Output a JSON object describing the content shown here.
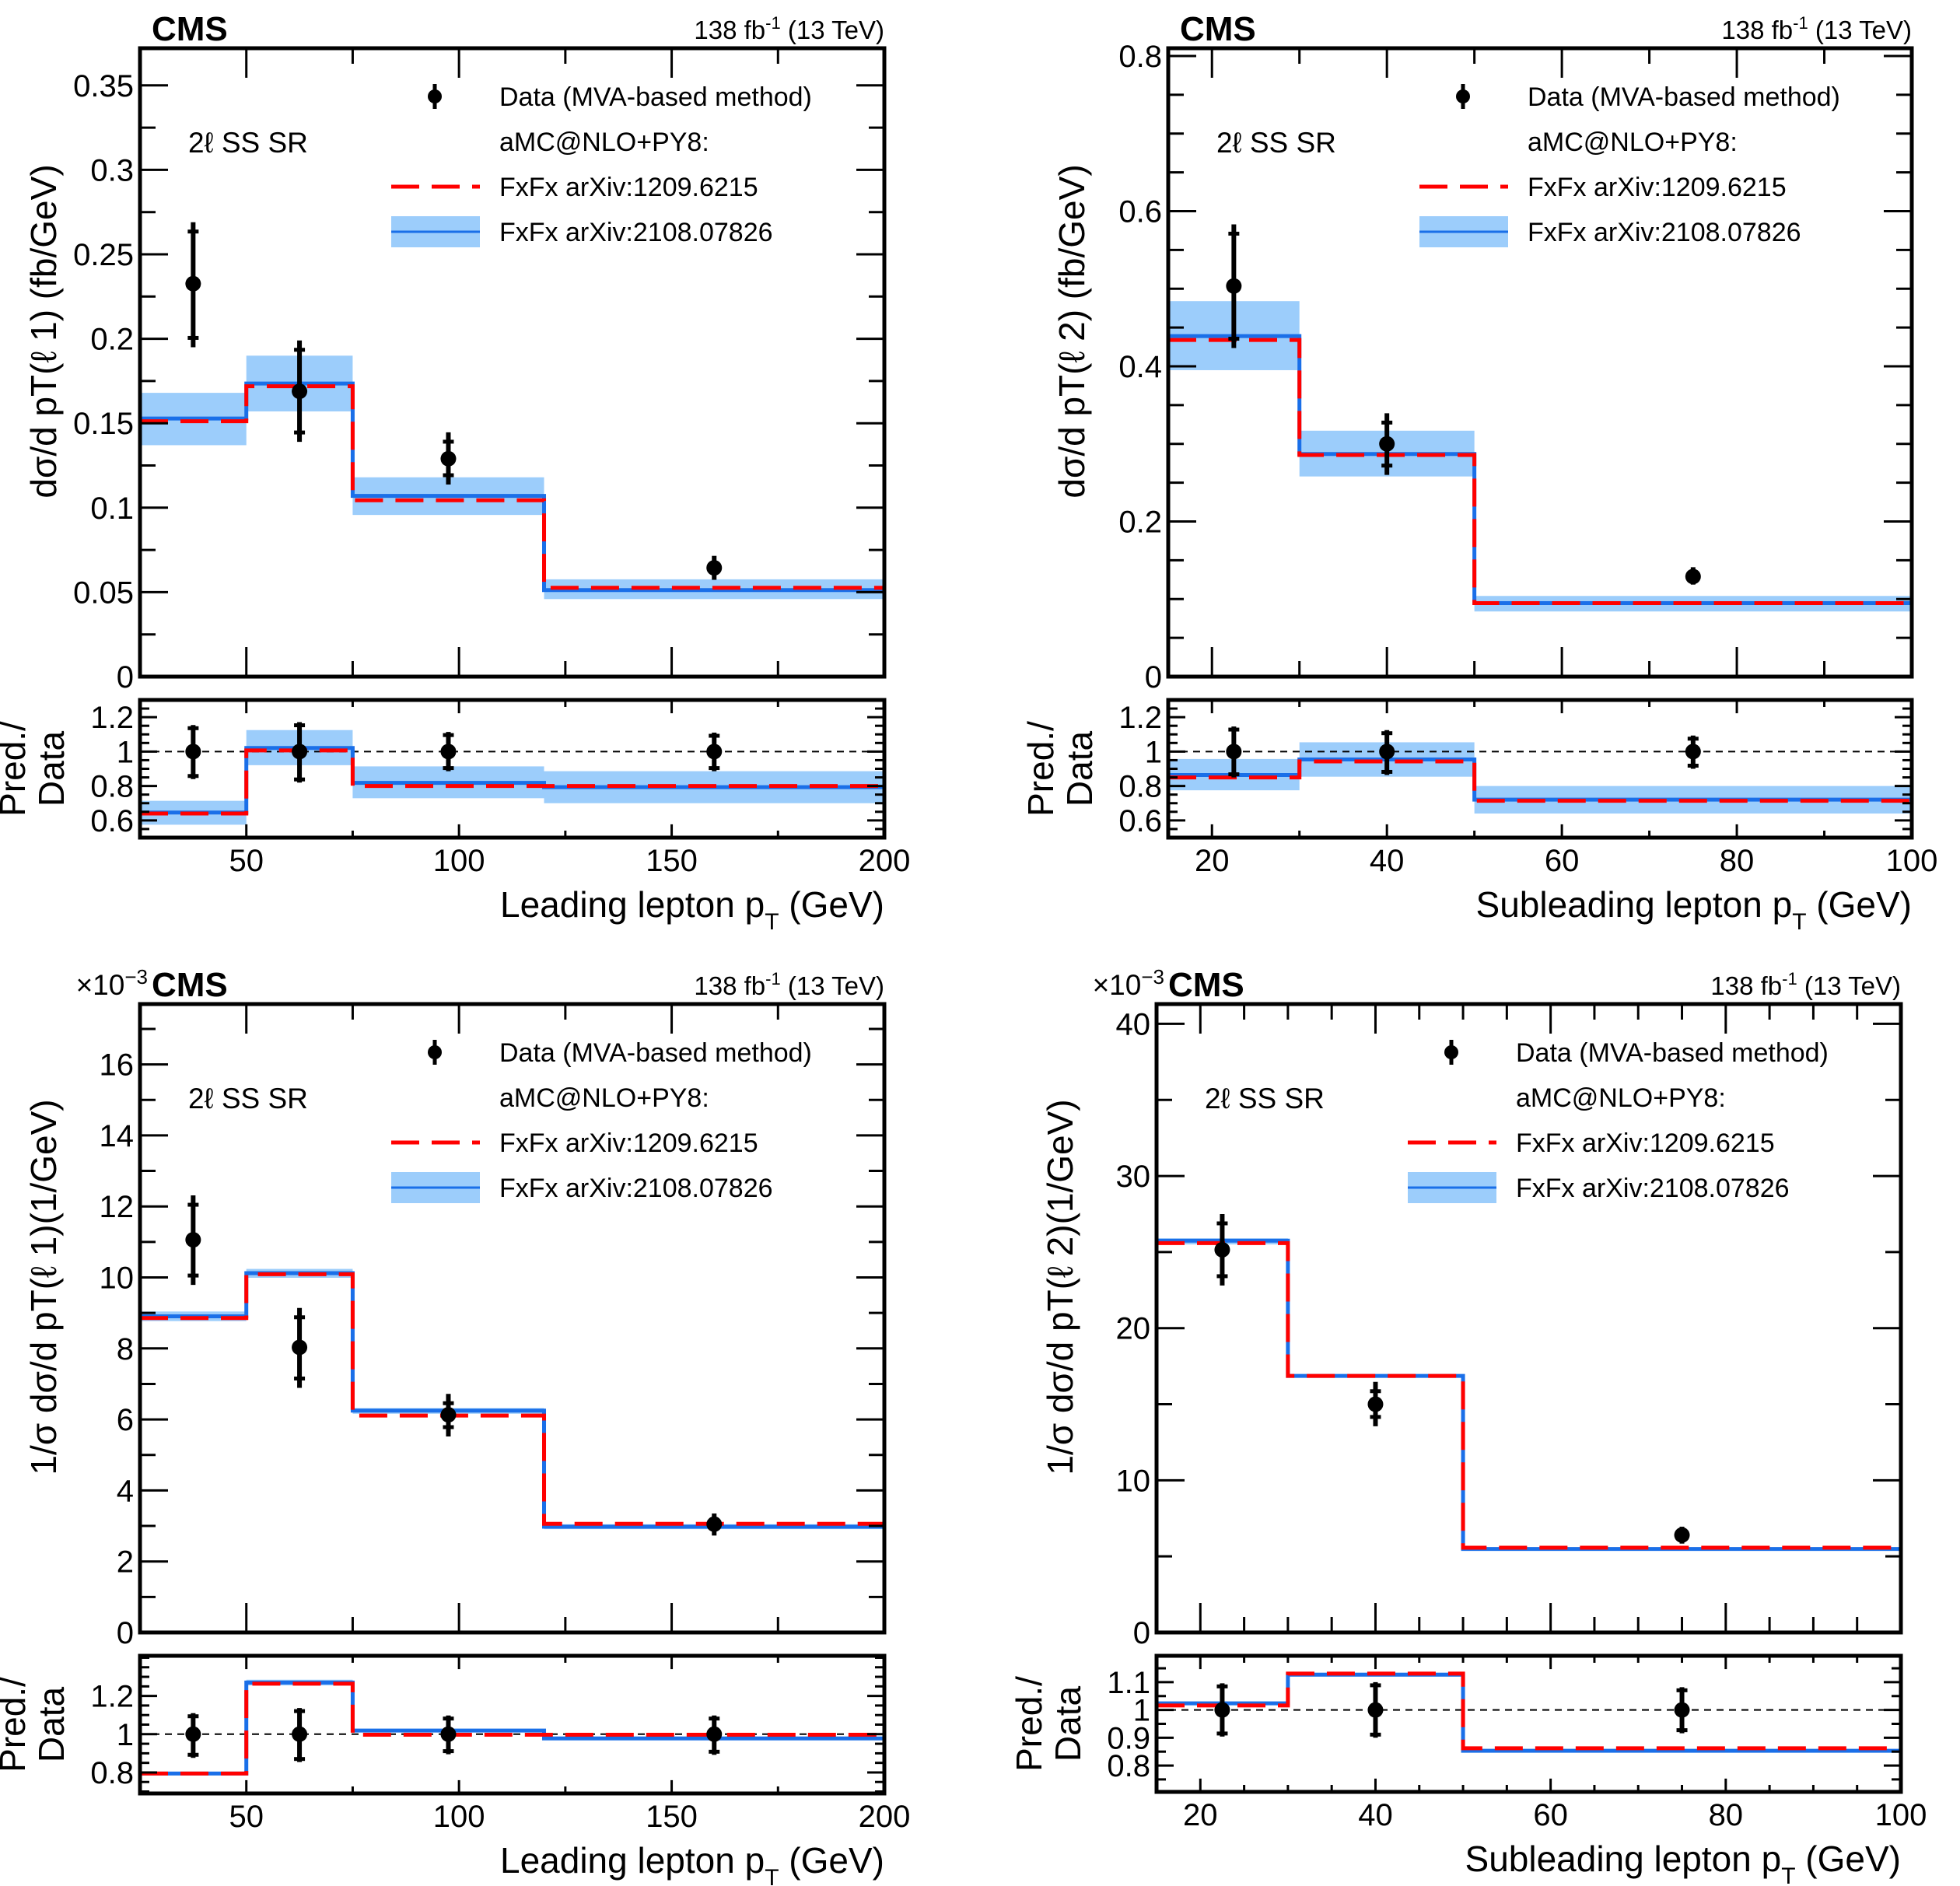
{
  "figure": {
    "colors": {
      "data": "#000000",
      "red_line": "#ff0000",
      "blue_line": "#1a6fe8",
      "blue_band": "#9ccdfb",
      "reference_line": "#000000"
    }
  },
  "chart_data": [
    {
      "id": "top-left",
      "type": "line",
      "title": "CMS",
      "lumi_text": "138 fb",
      "lumi_sup": "-1",
      "lumi_suffix": " (13 TeV)",
      "region_label": "2ℓ SS SR",
      "exponent_label": "",
      "ylabel": "dσ/d pT(ℓ 1)  (fb/GeV)",
      "ratio_ylabel_line1": "Pred./",
      "ratio_ylabel_line2": "Data",
      "xlabel": "Leading lepton p",
      "xlabel_sub": "T",
      "xlabel_suffix": " (GeV)",
      "xlim": [
        25,
        200
      ],
      "ylim": [
        0,
        0.372
      ],
      "ratio_ylim": [
        0.5,
        1.3
      ],
      "xticks": [
        50,
        100,
        150,
        200
      ],
      "xtick_labels": [
        "50",
        "100",
        "150",
        "200"
      ],
      "x_minor_step": 25,
      "yticks": [
        0,
        0.05,
        0.1,
        0.15,
        0.2,
        0.25,
        0.3,
        0.35
      ],
      "ytick_labels": [
        "0",
        "0.05",
        "0.1",
        "0.15",
        "0.2",
        "0.25",
        "0.3",
        "0.35"
      ],
      "y_minor_step": 0.025,
      "ratio_yticks": [
        0.6,
        0.8,
        1,
        1.2
      ],
      "ratio_ytick_labels": [
        "0.6",
        "0.8",
        "1",
        "1.2"
      ],
      "ratio_minor_step": 0.05,
      "bin_edges": [
        25,
        50,
        75,
        120,
        200
      ],
      "legend": [
        {
          "type": "data",
          "label": "Data (MVA-based method)"
        },
        {
          "type": "text",
          "label": "aMC@NLO+PY8:"
        },
        {
          "type": "red",
          "label": "FxFx arXiv:1209.6215"
        },
        {
          "type": "blue",
          "label": "FxFx arXiv:2108.07826"
        }
      ],
      "series": [
        {
          "name": "Data (MVA-based method)",
          "kind": "points",
          "x": [
            37.5,
            62.5,
            97.5,
            160
          ],
          "y": [
            0.2326,
            0.1689,
            0.129,
            0.0644
          ],
          "y_low": [
            0.195,
            0.139,
            0.1137,
            0.0573
          ],
          "y_high": [
            0.269,
            0.199,
            0.1446,
            0.0715
          ],
          "ratio_low": [
            0.84,
            0.82,
            0.886,
            0.886
          ],
          "ratio_high": [
            1.154,
            1.171,
            1.114,
            1.11
          ]
        },
        {
          "name": "FxFx arXiv:1209.6215",
          "kind": "red",
          "values": [
            0.1512,
            0.1719,
            0.1044,
            0.0526
          ],
          "ratio": [
            0.64,
            1.007,
            0.8,
            0.8
          ]
        },
        {
          "name": "FxFx arXiv:2108.07826",
          "kind": "blue",
          "values": [
            0.1528,
            0.1735,
            0.107,
            0.0512
          ],
          "band_low": [
            0.137,
            0.157,
            0.0957,
            0.0459
          ],
          "band_high": [
            0.168,
            0.19,
            0.118,
            0.0576
          ],
          "ratio": [
            0.646,
            1.021,
            0.818,
            0.793
          ],
          "ratio_band_low": [
            0.575,
            0.921,
            0.729,
            0.7
          ],
          "ratio_band_high": [
            0.714,
            1.125,
            0.914,
            0.886
          ]
        }
      ]
    },
    {
      "id": "top-right",
      "type": "line",
      "title": "CMS",
      "lumi_text": "138 fb",
      "lumi_sup": "-1",
      "lumi_suffix": " (13 TeV)",
      "region_label": "2ℓ SS SR",
      "exponent_label": "",
      "ylabel": "dσ/d pT(ℓ 2)  (fb/GeV)",
      "ratio_ylabel_line1": "Pred./",
      "ratio_ylabel_line2": "Data",
      "xlabel": "Subleading lepton p",
      "xlabel_sub": "T",
      "xlabel_suffix": " (GeV)",
      "xlim": [
        15,
        100
      ],
      "ylim": [
        0,
        0.81
      ],
      "ratio_ylim": [
        0.5,
        1.3
      ],
      "xticks": [
        20,
        40,
        60,
        80,
        100
      ],
      "xtick_labels": [
        "20",
        "40",
        "60",
        "80",
        "100"
      ],
      "x_minor_step": 10,
      "yticks": [
        0,
        0.2,
        0.4,
        0.6,
        0.8
      ],
      "ytick_labels": [
        "0",
        "0.2",
        "0.4",
        "0.6",
        "0.8"
      ],
      "y_minor_step": 0.05,
      "ratio_yticks": [
        0.6,
        0.8,
        1,
        1.2
      ],
      "ratio_ytick_labels": [
        "0.6",
        "0.8",
        "1",
        "1.2"
      ],
      "ratio_minor_step": 0.05,
      "bin_edges": [
        15,
        30,
        50,
        100
      ],
      "legend": [
        {
          "type": "data",
          "label": "Data (MVA-based method)"
        },
        {
          "type": "text",
          "label": "aMC@NLO+PY8:"
        },
        {
          "type": "red",
          "label": "FxFx arXiv:1209.6215"
        },
        {
          "type": "blue",
          "label": "FxFx arXiv:2108.07826"
        }
      ],
      "series": [
        {
          "name": "Data (MVA-based method)",
          "kind": "points",
          "x": [
            22.5,
            40,
            75
          ],
          "y": [
            0.5035,
            0.3,
            0.129
          ],
          "y_low": [
            0.4235,
            0.26,
            0.1186
          ],
          "y_high": [
            0.583,
            0.3395,
            0.141
          ],
          "ratio_low": [
            0.85,
            0.864,
            0.9
          ],
          "ratio_high": [
            1.146,
            1.125,
            1.093
          ]
        },
        {
          "name": "FxFx arXiv:1209.6215",
          "kind": "red",
          "values": [
            0.434,
            0.2857,
            0.0947
          ],
          "ratio": [
            0.85,
            0.943,
            0.714
          ]
        },
        {
          "name": "FxFx arXiv:2108.07826",
          "kind": "blue",
          "values": [
            0.439,
            0.287,
            0.0947
          ],
          "band_low": [
            0.395,
            0.258,
            0.084
          ],
          "band_high": [
            0.484,
            0.317,
            0.104
          ],
          "ratio": [
            0.864,
            0.954,
            0.721
          ],
          "ratio_band_low": [
            0.775,
            0.854,
            0.64
          ],
          "ratio_band_high": [
            0.957,
            1.054,
            0.8
          ]
        }
      ]
    },
    {
      "id": "bottom-left",
      "type": "line",
      "title": "CMS",
      "lumi_text": "138 fb",
      "lumi_sup": "-1",
      "lumi_suffix": " (13 TeV)",
      "region_label": "2ℓ SS SR",
      "exponent_label": "×10",
      "exponent_sup": "−3",
      "ylabel": "1/σ dσ/d pT(ℓ 1)(1/GeV)",
      "ratio_ylabel_line1": "Pred./",
      "ratio_ylabel_line2": "Data",
      "xlabel": "Leading lepton p",
      "xlabel_sub": "T",
      "xlabel_suffix": " (GeV)",
      "xlim": [
        25,
        200
      ],
      "ylim": [
        0,
        17.7
      ],
      "ratio_ylim": [
        0.69,
        1.41
      ],
      "xticks": [
        50,
        100,
        150,
        200
      ],
      "xtick_labels": [
        "50",
        "100",
        "150",
        "200"
      ],
      "x_minor_step": 25,
      "yticks": [
        0,
        2,
        4,
        6,
        8,
        10,
        12,
        14,
        16
      ],
      "ytick_labels": [
        "0",
        "2",
        "4",
        "6",
        "8",
        "10",
        "12",
        "14",
        "16"
      ],
      "y_minor_step": 1,
      "ratio_yticks": [
        0.8,
        1,
        1.2
      ],
      "ratio_ytick_labels": [
        "0.8",
        "1",
        "1.2"
      ],
      "ratio_minor_step": 0.05,
      "bin_edges": [
        25,
        50,
        75,
        120,
        200
      ],
      "legend": [
        {
          "type": "data",
          "label": "Data (MVA-based method)"
        },
        {
          "type": "text",
          "label": "aMC@NLO+PY8:"
        },
        {
          "type": "red",
          "label": "FxFx arXiv:1209.6215"
        },
        {
          "type": "blue",
          "label": "FxFx arXiv:2108.07826"
        }
      ],
      "series": [
        {
          "name": "Data (MVA-based method)",
          "kind": "points",
          "x": [
            37.5,
            62.5,
            97.5,
            160
          ],
          "y": [
            11.06,
            8.03,
            6.13,
            3.05
          ],
          "y_low": [
            9.79,
            6.89,
            5.52,
            2.73
          ],
          "y_high": [
            12.31,
            9.14,
            6.72,
            3.35
          ],
          "ratio_low": [
            0.876,
            0.854,
            0.895,
            0.892
          ],
          "ratio_high": [
            1.11,
            1.137,
            1.098,
            1.098
          ]
        },
        {
          "name": "FxFx arXiv:1209.6215",
          "kind": "red",
          "values": [
            8.855,
            10.09,
            6.11,
            3.06
          ],
          "ratio": [
            0.794,
            1.264,
            0.997,
            0.997
          ]
        },
        {
          "name": "FxFx arXiv:2108.07826",
          "kind": "blue",
          "values": [
            8.906,
            10.12,
            6.25,
            2.98
          ],
          "band_low": [
            8.77,
            9.99,
            6.16,
            2.91
          ],
          "band_high": [
            9.04,
            10.24,
            6.32,
            3.05
          ],
          "ratio": [
            0.794,
            1.27,
            1.019,
            0.978
          ],
          "ratio_band_low": [
            0.785,
            1.255,
            1.01,
            0.97
          ],
          "ratio_band_high": [
            0.803,
            1.285,
            1.028,
            0.986
          ]
        }
      ]
    },
    {
      "id": "bottom-right",
      "type": "line",
      "title": "CMS",
      "lumi_text": "138 fb",
      "lumi_sup": "-1",
      "lumi_suffix": " (13 TeV)",
      "region_label": "2ℓ SS SR",
      "exponent_label": "×10",
      "exponent_sup": "−3",
      "ylabel": "1/σ dσ/d pT(ℓ 2)(1/GeV)",
      "ratio_ylabel_line1": "Pred./",
      "ratio_ylabel_line2": "Data",
      "xlabel": "Subleading lepton p",
      "xlabel_sub": "T",
      "xlabel_suffix": " (GeV)",
      "xlim": [
        15,
        100
      ],
      "ylim": [
        0,
        41.3
      ],
      "ratio_ylim": [
        0.705,
        1.195
      ],
      "xticks": [
        20,
        40,
        60,
        80,
        100
      ],
      "xtick_labels": [
        "20",
        "40",
        "60",
        "80",
        "100"
      ],
      "x_minor_step": 5,
      "yticks": [
        0,
        10,
        20,
        30,
        40
      ],
      "ytick_labels": [
        "0",
        "10",
        "20",
        "30",
        "40"
      ],
      "y_minor_step": 5,
      "ratio_yticks": [
        0.8,
        0.9,
        1,
        1.1
      ],
      "ratio_ytick_labels": [
        "0.8",
        "0.9",
        "1",
        "1.1"
      ],
      "ratio_minor_step": 0.05,
      "bin_edges": [
        15,
        30,
        50,
        100
      ],
      "legend": [
        {
          "type": "data",
          "label": "Data (MVA-based method)"
        },
        {
          "type": "text",
          "label": "aMC@NLO+PY8:"
        },
        {
          "type": "red",
          "label": "FxFx arXiv:1209.6215"
        },
        {
          "type": "blue",
          "label": "FxFx arXiv:2108.07826"
        }
      ],
      "series": [
        {
          "name": "Data (MVA-based method)",
          "kind": "points",
          "x": [
            22.5,
            40,
            75
          ],
          "y": [
            25.15,
            15.0,
            6.4
          ],
          "y_low": [
            22.8,
            13.55,
            5.84
          ],
          "y_high": [
            27.5,
            16.47,
            6.95
          ],
          "ratio_low": [
            0.904,
            0.9,
            0.916
          ],
          "ratio_high": [
            1.096,
            1.1,
            1.082
          ]
        },
        {
          "name": "FxFx arXiv:1209.6215",
          "kind": "red",
          "values": [
            25.59,
            16.86,
            5.57
          ],
          "ratio": [
            1.016,
            1.131,
            0.862
          ]
        },
        {
          "name": "FxFx arXiv:2108.07826",
          "kind": "blue",
          "values": [
            25.75,
            16.86,
            5.49
          ],
          "band_low": [
            25.5,
            16.76,
            5.42
          ],
          "band_high": [
            25.9,
            16.96,
            5.56
          ],
          "ratio": [
            1.024,
            1.127,
            0.853
          ],
          "ratio_band_low": [
            1.018,
            1.12,
            0.847
          ],
          "ratio_band_high": [
            1.03,
            1.134,
            0.859
          ]
        }
      ]
    }
  ]
}
